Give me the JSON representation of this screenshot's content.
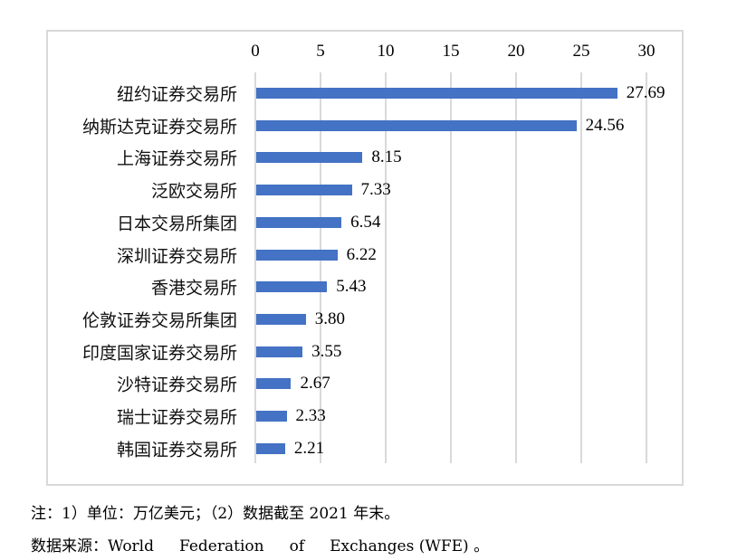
{
  "chart_data": {
    "type": "bar",
    "orientation": "horizontal",
    "title": "",
    "xlabel": "",
    "ylabel": "",
    "xlim": [
      0,
      30
    ],
    "x_ticks": [
      0,
      5,
      10,
      15,
      20,
      25,
      30
    ],
    "x_axis_position": "top",
    "grid": true,
    "legend": null,
    "categories": [
      "纽约证券交易所",
      "纳斯达克证券交易所",
      "上海证券交易所",
      "泛欧交易所",
      "日本交易所集团",
      "深圳证券交易所",
      "香港交易所",
      "伦敦证券交易所集团",
      "印度国家证券交易所",
      "沙特证券交易所",
      "瑞士证券交易所",
      "韩国证券交易所"
    ],
    "values": [
      27.69,
      24.56,
      8.15,
      7.33,
      6.54,
      6.22,
      5.43,
      3.8,
      3.55,
      2.67,
      2.33,
      2.21
    ],
    "value_labels": [
      "27.69",
      "24.56",
      "8.15",
      "7.33",
      "6.54",
      "6.22",
      "5.43",
      "3.80",
      "3.55",
      "2.67",
      "2.33",
      "2.21"
    ],
    "bar_color": "#4472C4"
  },
  "notes": {
    "line1": "注：1）单位：万亿美元；（2）数据截至 2021 年末。",
    "line2_prefix": "数据来源：World",
    "line2_w2": "Federation",
    "line2_w3": "of",
    "line2_w4": "Exchanges (WFE) 。"
  }
}
